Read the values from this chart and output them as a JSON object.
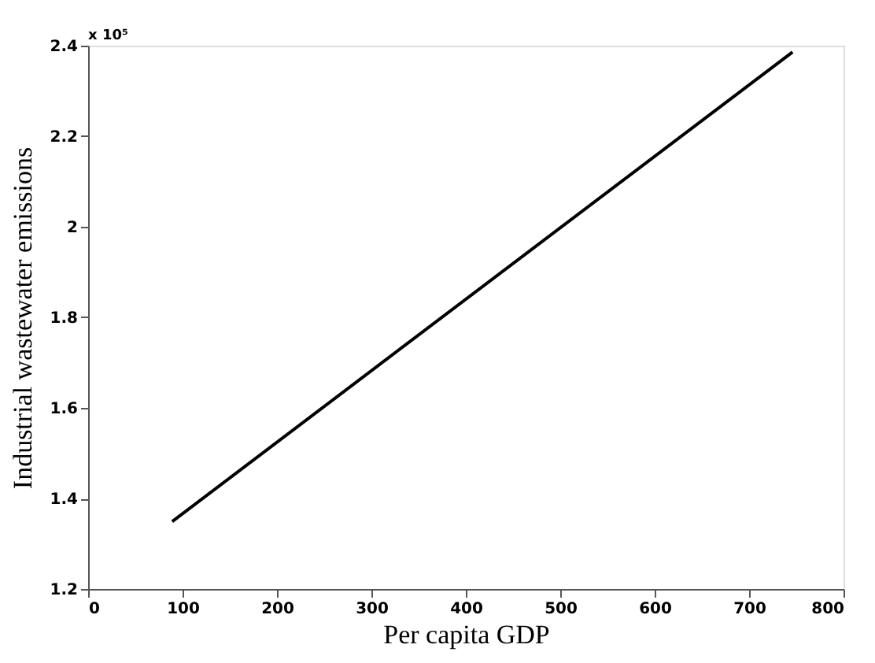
{
  "chart_data": {
    "type": "line",
    "xlabel": "Per capita GDP",
    "ylabel": "Industrial wastewater emissions",
    "annotations": [
      "x 10⁵"
    ],
    "x": [
      89,
      746
    ],
    "series": [
      {
        "color": "#000000",
        "values": [
          1.349,
          2.386
        ]
      }
    ],
    "xlim": [
      0,
      800
    ],
    "xticks": [
      0,
      100,
      200,
      300,
      400,
      500,
      600,
      700,
      800
    ],
    "ylim": [
      1.2,
      2.4
    ],
    "yticks": [
      1.2,
      1.4,
      1.6,
      1.8,
      2,
      2.2,
      2.4
    ],
    "grid": false,
    "legend": false,
    "marker": "none",
    "line_style": "solid"
  }
}
